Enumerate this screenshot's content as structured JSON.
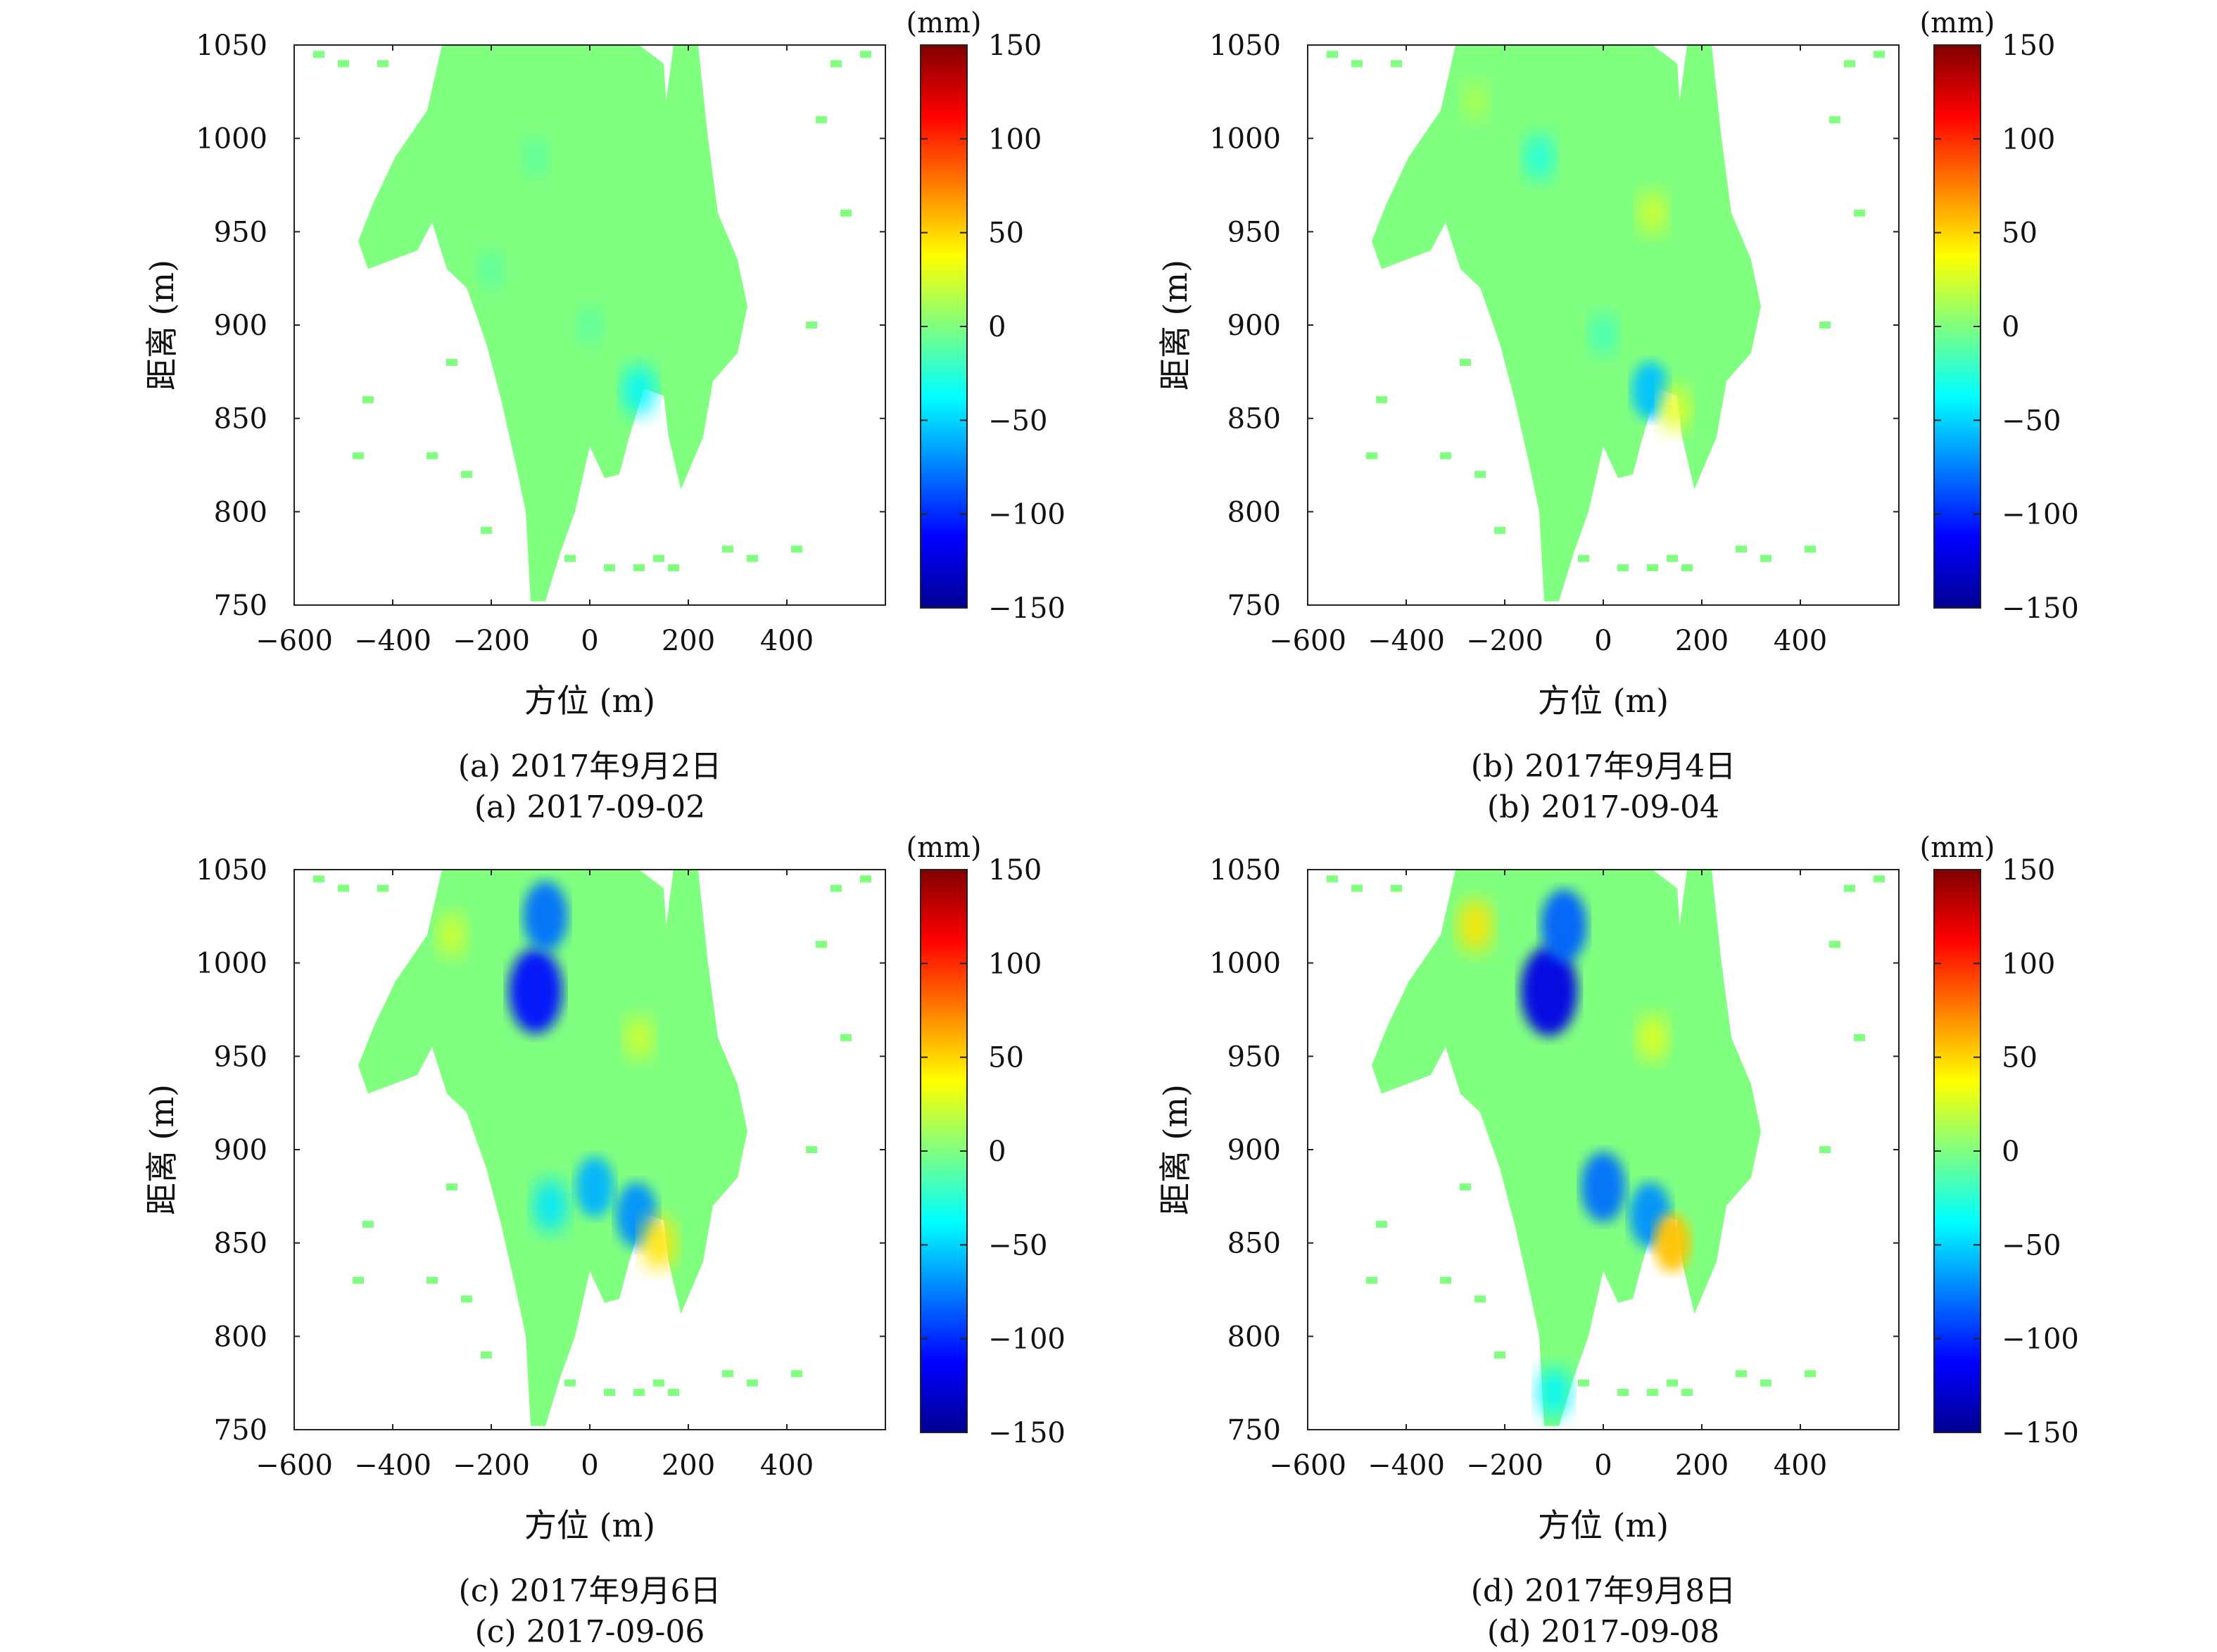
{
  "colorbar": {
    "unit": "(mm)",
    "ticks": [
      150,
      100,
      50,
      0,
      -50,
      -100,
      -150
    ],
    "tick_labels": [
      "150",
      "100",
      "50",
      "0",
      "−50",
      "−100",
      "−150"
    ],
    "range": [
      -150,
      150
    ],
    "colormap": "jet",
    "stops": [
      "#00008f",
      "#0000ff",
      "#00ffff",
      "#ffff00",
      "#ff0000",
      "#800000"
    ]
  },
  "chart_data": [
    {
      "type": "heatmap",
      "panel": "a",
      "caption_cn": "(a) 2017年9月2日",
      "caption_en": "(a) 2017-09-02",
      "xlabel": "方位 (m)",
      "ylabel": "距离 (m)",
      "xlim": [
        -600,
        600
      ],
      "ylim": [
        750,
        1050
      ],
      "xticks": [
        -600,
        -400,
        -200,
        0,
        200,
        400
      ],
      "xtick_labels": [
        "−600",
        "−400",
        "−200",
        "0",
        "200",
        "400"
      ],
      "yticks": [
        750,
        800,
        850,
        900,
        950,
        1000,
        1050
      ],
      "ytick_labels": [
        "750",
        "800",
        "850",
        "900",
        "950",
        "1000",
        "1050"
      ],
      "background_value": 0,
      "features": [
        {
          "azimuth": 100,
          "range": 865,
          "value": -40
        },
        {
          "azimuth": -110,
          "range": 990,
          "value": -12
        },
        {
          "azimuth": -200,
          "range": 930,
          "value": -12
        },
        {
          "azimuth": 0,
          "range": 900,
          "value": -12
        }
      ]
    },
    {
      "type": "heatmap",
      "panel": "b",
      "caption_cn": "(b) 2017年9月4日",
      "caption_en": "(b) 2017-09-04",
      "xlabel": "方位 (m)",
      "ylabel": "距离 (m)",
      "xlim": [
        -600,
        600
      ],
      "ylim": [
        750,
        1050
      ],
      "xticks": [
        -600,
        -400,
        -200,
        0,
        200,
        400
      ],
      "xtick_labels": [
        "−600",
        "−400",
        "−200",
        "0",
        "200",
        "400"
      ],
      "yticks": [
        750,
        800,
        850,
        900,
        950,
        1000,
        1050
      ],
      "ytick_labels": [
        "750",
        "800",
        "850",
        "900",
        "950",
        "1000",
        "1050"
      ],
      "background_value": 0,
      "features": [
        {
          "azimuth": 95,
          "range": 865,
          "value": -55
        },
        {
          "azimuth": 145,
          "range": 855,
          "value": 30
        },
        {
          "azimuth": 100,
          "range": 960,
          "value": 25
        },
        {
          "azimuth": -130,
          "range": 990,
          "value": -30
        },
        {
          "azimuth": -260,
          "range": 1020,
          "value": 15
        },
        {
          "azimuth": 0,
          "range": 895,
          "value": -20
        }
      ]
    },
    {
      "type": "heatmap",
      "panel": "c",
      "caption_cn": "(c) 2017年9月6日",
      "caption_en": "(c) 2017-09-06",
      "xlabel": "方位 (m)",
      "ylabel": "距离 (m)",
      "xlim": [
        -600,
        600
      ],
      "ylim": [
        750,
        1050
      ],
      "xticks": [
        -600,
        -400,
        -200,
        0,
        200,
        400
      ],
      "xtick_labels": [
        "−600",
        "−400",
        "−200",
        "0",
        "200",
        "400"
      ],
      "yticks": [
        750,
        800,
        850,
        900,
        950,
        1000,
        1050
      ],
      "ytick_labels": [
        "750",
        "800",
        "850",
        "900",
        "950",
        "1000",
        "1050"
      ],
      "background_value": 0,
      "features": [
        {
          "azimuth": -110,
          "range": 985,
          "value": -110
        },
        {
          "azimuth": -90,
          "range": 1025,
          "value": -80
        },
        {
          "azimuth": 10,
          "range": 880,
          "value": -60
        },
        {
          "azimuth": 95,
          "range": 865,
          "value": -70
        },
        {
          "azimuth": 140,
          "range": 850,
          "value": 45
        },
        {
          "azimuth": 100,
          "range": 960,
          "value": 25
        },
        {
          "azimuth": -280,
          "range": 1015,
          "value": 25
        },
        {
          "azimuth": -80,
          "range": 870,
          "value": -45
        }
      ]
    },
    {
      "type": "heatmap",
      "panel": "d",
      "caption_cn": "(d) 2017年9月8日",
      "caption_en": "(d) 2017-09-08",
      "xlabel": "方位 (m)",
      "ylabel": "距离 (m)",
      "xlim": [
        -600,
        600
      ],
      "ylim": [
        750,
        1050
      ],
      "xticks": [
        -600,
        -400,
        -200,
        0,
        200,
        400
      ],
      "xtick_labels": [
        "−600",
        "−400",
        "−200",
        "0",
        "200",
        "400"
      ],
      "yticks": [
        750,
        800,
        850,
        900,
        950,
        1000,
        1050
      ],
      "ytick_labels": [
        "750",
        "800",
        "850",
        "900",
        "950",
        "1000",
        "1050"
      ],
      "background_value": 0,
      "features": [
        {
          "azimuth": -110,
          "range": 985,
          "value": -120
        },
        {
          "azimuth": -80,
          "range": 1020,
          "value": -85
        },
        {
          "azimuth": 0,
          "range": 880,
          "value": -80
        },
        {
          "azimuth": 95,
          "range": 865,
          "value": -70
        },
        {
          "azimuth": 140,
          "range": 850,
          "value": 55
        },
        {
          "azimuth": 100,
          "range": 960,
          "value": 30
        },
        {
          "azimuth": -260,
          "range": 1020,
          "value": 45
        },
        {
          "azimuth": -100,
          "range": 770,
          "value": -40
        }
      ]
    }
  ]
}
